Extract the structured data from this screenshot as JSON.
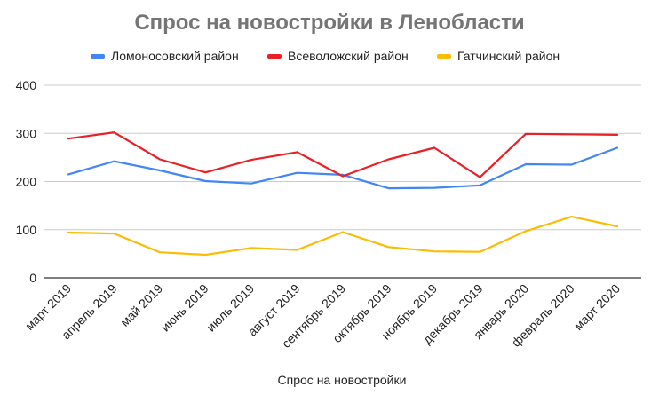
{
  "chart_data": {
    "type": "line",
    "title": "Спрос на новостройки в Ленобласти",
    "xlabel": "Спрос на новостройки",
    "ylabel": "",
    "ylim": [
      0,
      400
    ],
    "yticks": [
      0,
      100,
      200,
      300,
      400
    ],
    "grid": true,
    "legend_position": "top",
    "categories": [
      "март 2019",
      "апрель 2019",
      "май 2019",
      "июнь 2019",
      "июль 2019",
      "август 2019",
      "сентябрь 2019",
      "октябрь 2019",
      "ноябрь 2019",
      "декабрь 2019",
      "январь 2020",
      "февраль 2020",
      "март 2020"
    ],
    "series": [
      {
        "name": "Ломоносовский район",
        "color": "#4285f4",
        "values": [
          215,
          242,
          223,
          201,
          196,
          218,
          214,
          186,
          187,
          192,
          236,
          235,
          270
        ]
      },
      {
        "name": "Всеволожский район",
        "color": "#ea2027",
        "values": [
          289,
          302,
          246,
          219,
          245,
          261,
          211,
          246,
          270,
          209,
          299,
          298,
          297
        ]
      },
      {
        "name": "Гатчинский район",
        "color": "#fbbc04",
        "values": [
          94,
          92,
          53,
          48,
          62,
          58,
          95,
          64,
          55,
          54,
          97,
          127,
          107
        ]
      }
    ]
  }
}
